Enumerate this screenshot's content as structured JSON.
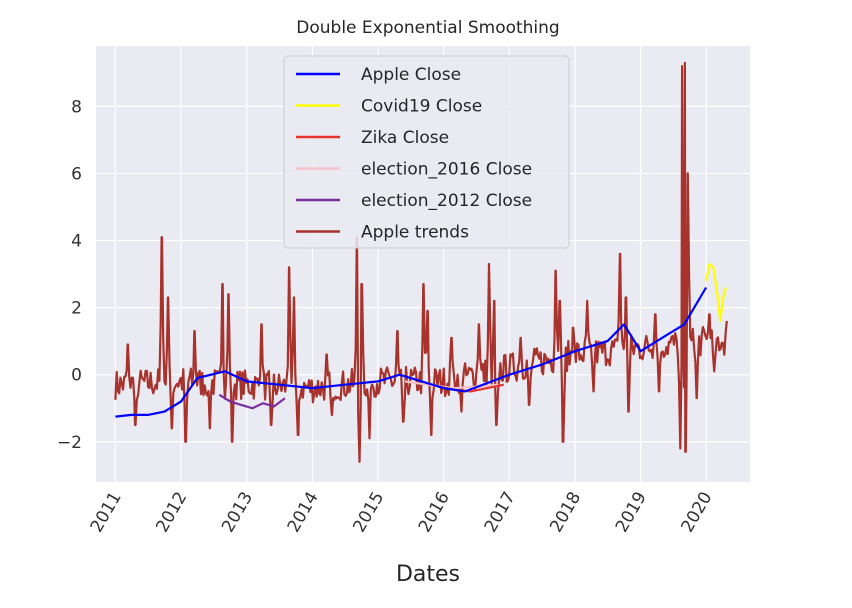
{
  "chart_data": {
    "type": "line",
    "title": "Double Exponential Smoothing",
    "xlabel": "Dates",
    "ylabel": "",
    "x_ticks": [
      "2011",
      "2012",
      "2013",
      "2014",
      "2015",
      "2016",
      "2017",
      "2018",
      "2019",
      "2020"
    ],
    "y_ticks": [
      -2,
      0,
      2,
      4,
      6,
      8
    ],
    "xlim": [
      "2010-09-15",
      "2020-09-01"
    ],
    "ylim": [
      -3.2,
      9.8
    ],
    "grid": true,
    "legend_position": "top-center",
    "series": [
      {
        "name": "Apple Close",
        "color": "#0000ff",
        "points": [
          [
            "2011-01-01",
            -1.25
          ],
          [
            "2011-04-01",
            -1.2
          ],
          [
            "2011-07-01",
            -1.2
          ],
          [
            "2011-10-01",
            -1.1
          ],
          [
            "2012-01-01",
            -0.8
          ],
          [
            "2012-04-01",
            -0.1
          ],
          [
            "2012-09-01",
            0.1
          ],
          [
            "2013-01-01",
            -0.2
          ],
          [
            "2013-07-01",
            -0.3
          ],
          [
            "2014-01-01",
            -0.4
          ],
          [
            "2014-07-01",
            -0.3
          ],
          [
            "2015-01-01",
            -0.2
          ],
          [
            "2015-05-01",
            0.0
          ],
          [
            "2016-01-01",
            -0.4
          ],
          [
            "2016-05-01",
            -0.5
          ],
          [
            "2017-01-01",
            0.0
          ],
          [
            "2017-07-01",
            0.3
          ],
          [
            "2018-01-01",
            0.7
          ],
          [
            "2018-07-01",
            1.0
          ],
          [
            "2018-10-01",
            1.5
          ],
          [
            "2019-01-01",
            0.7
          ],
          [
            "2019-06-01",
            1.2
          ],
          [
            "2019-09-01",
            1.5
          ],
          [
            "2020-01-01",
            2.6
          ]
        ]
      },
      {
        "name": "Covid19 Close",
        "color": "#ffff00",
        "points": [
          [
            "2020-01-01",
            2.8
          ],
          [
            "2020-01-20",
            3.3
          ],
          [
            "2020-02-10",
            3.2
          ],
          [
            "2020-03-01",
            2.5
          ],
          [
            "2020-03-20",
            1.6
          ],
          [
            "2020-04-05",
            2.3
          ],
          [
            "2020-04-20",
            2.6
          ]
        ]
      },
      {
        "name": "Zika Close",
        "color": "#e8352c",
        "points": [
          [
            "2015-12-01",
            -0.35
          ],
          [
            "2016-03-01",
            -0.45
          ],
          [
            "2016-06-01",
            -0.5
          ],
          [
            "2016-09-01",
            -0.4
          ],
          [
            "2016-12-01",
            -0.3
          ]
        ]
      },
      {
        "name": "election_2016 Close",
        "color": "#f4c2c8",
        "points": [
          [
            "2015-06-01",
            -0.2
          ],
          [
            "2015-10-01",
            -0.3
          ],
          [
            "2016-03-01",
            -0.4
          ],
          [
            "2016-08-01",
            -0.35
          ],
          [
            "2016-11-01",
            -0.3
          ]
        ]
      },
      {
        "name": "election_2012 Close",
        "color": "#7b2fa0",
        "points": [
          [
            "2012-08-01",
            -0.6
          ],
          [
            "2012-10-01",
            -0.8
          ],
          [
            "2012-12-01",
            -0.9
          ],
          [
            "2013-02-01",
            -1.0
          ],
          [
            "2013-04-01",
            -0.85
          ],
          [
            "2013-06-01",
            -0.95
          ],
          [
            "2013-08-01",
            -0.7
          ]
        ]
      },
      {
        "name": "Apple trends",
        "color": "#a8322c",
        "base": [
          [
            "2011-01-01",
            -0.3
          ],
          [
            "2012-01-01",
            -0.2
          ],
          [
            "2013-01-01",
            -0.3
          ],
          [
            "2014-01-01",
            -0.4
          ],
          [
            "2015-01-01",
            -0.2
          ],
          [
            "2016-01-01",
            -0.2
          ],
          [
            "2017-01-01",
            0.2
          ],
          [
            "2018-01-01",
            0.6
          ],
          [
            "2019-01-01",
            0.8
          ],
          [
            "2020-01-01",
            1.0
          ],
          [
            "2020-04-20",
            1.0
          ]
        ],
        "spikes": [
          [
            "2011-03-10",
            0.9
          ],
          [
            "2011-09-15",
            4.1
          ],
          [
            "2011-10-20",
            2.3
          ],
          [
            "2012-03-15",
            1.3
          ],
          [
            "2012-08-20",
            2.7
          ],
          [
            "2012-09-20",
            2.4
          ],
          [
            "2013-03-25",
            1.5
          ],
          [
            "2013-08-25",
            3.2
          ],
          [
            "2013-09-20",
            2.3
          ],
          [
            "2014-03-20",
            0.6
          ],
          [
            "2014-09-05",
            4.1
          ],
          [
            "2014-10-01",
            2.7
          ],
          [
            "2015-04-20",
            1.3
          ],
          [
            "2015-09-10",
            2.7
          ],
          [
            "2015-10-05",
            1.9
          ],
          [
            "2016-02-15",
            1.1
          ],
          [
            "2016-07-15",
            1.5
          ],
          [
            "2016-09-10",
            3.3
          ],
          [
            "2016-10-10",
            2.2
          ],
          [
            "2017-03-05",
            1.1
          ],
          [
            "2017-09-15",
            3.1
          ],
          [
            "2017-10-10",
            2.2
          ],
          [
            "2017-12-20",
            1.4
          ],
          [
            "2018-03-10",
            2.2
          ],
          [
            "2018-09-10",
            3.6
          ],
          [
            "2018-10-10",
            2.3
          ],
          [
            "2019-03-25",
            1.8
          ],
          [
            "2019-08-20",
            9.2
          ],
          [
            "2019-09-05",
            9.3
          ],
          [
            "2019-09-20",
            6.0
          ],
          [
            "2020-01-20",
            1.8
          ],
          [
            "2020-04-25",
            1.6
          ]
        ],
        "dips": [
          [
            "2011-04-20",
            -1.5
          ],
          [
            "2011-11-10",
            -1.6
          ],
          [
            "2012-01-25",
            -2.0
          ],
          [
            "2012-06-10",
            -1.6
          ],
          [
            "2012-10-10",
            -2.0
          ],
          [
            "2013-05-15",
            -1.5
          ],
          [
            "2013-10-15",
            -1.8
          ],
          [
            "2014-04-20",
            -1.2
          ],
          [
            "2014-09-20",
            -2.6
          ],
          [
            "2014-11-15",
            -1.9
          ],
          [
            "2015-05-20",
            -1.4
          ],
          [
            "2015-10-25",
            -1.8
          ],
          [
            "2016-04-10",
            -1.1
          ],
          [
            "2016-10-20",
            -1.5
          ],
          [
            "2017-04-20",
            -0.9
          ],
          [
            "2017-10-25",
            -2.0
          ],
          [
            "2018-04-15",
            -0.5
          ],
          [
            "2018-10-25",
            -1.1
          ],
          [
            "2019-04-15",
            -0.5
          ],
          [
            "2019-08-10",
            -2.2
          ],
          [
            "2019-09-10",
            -2.3
          ],
          [
            "2019-11-10",
            -0.7
          ],
          [
            "2020-02-15",
            0.1
          ]
        ]
      }
    ]
  }
}
